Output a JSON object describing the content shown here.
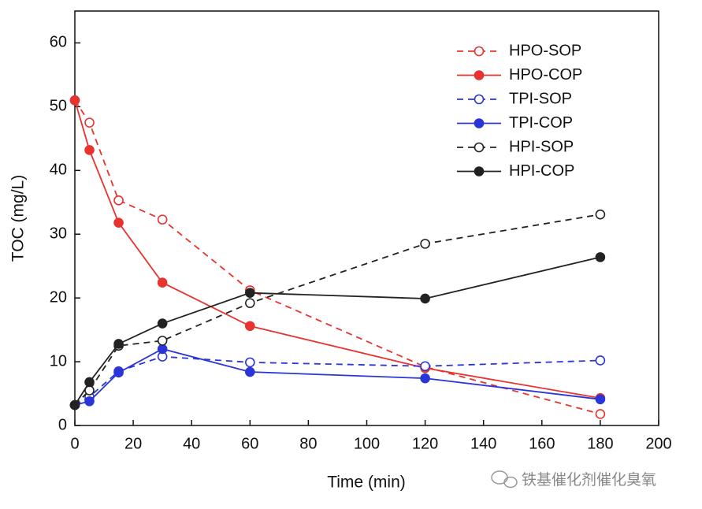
{
  "chart_data": {
    "type": "line",
    "xlabel": "Time (min)",
    "ylabel": "TOC (mg/L)",
    "x": [
      0,
      5,
      15,
      30,
      60,
      120,
      180
    ],
    "xlim": [
      0,
      200
    ],
    "xticks": [
      0,
      20,
      40,
      60,
      80,
      100,
      120,
      140,
      160,
      180,
      200
    ],
    "ylim": [
      0,
      65
    ],
    "yticks": [
      0,
      10,
      20,
      30,
      40,
      50,
      60
    ],
    "legend": "upper right",
    "series": [
      {
        "name": "HPO-SOP",
        "color": "#e8332f",
        "dashed": true,
        "marker_filled": false,
        "values": [
          51,
          47.5,
          35.3,
          32.3,
          21.2,
          9.2,
          1.8
        ]
      },
      {
        "name": "HPO-COP",
        "color": "#e8332f",
        "dashed": false,
        "marker_filled": true,
        "values": [
          51,
          43.2,
          31.8,
          22.4,
          15.6,
          9.0,
          4.3
        ]
      },
      {
        "name": "TPI-SOP",
        "color": "#2a35d8",
        "dashed": true,
        "marker_filled": false,
        "values": [
          3.2,
          4.5,
          8.5,
          10.8,
          9.9,
          9.3,
          10.2
        ]
      },
      {
        "name": "TPI-COP",
        "color": "#2a35d8",
        "dashed": false,
        "marker_filled": true,
        "values": [
          3.2,
          3.8,
          8.3,
          12.0,
          8.4,
          7.4,
          4.1
        ]
      },
      {
        "name": "HPI-SOP",
        "color": "#222222",
        "dashed": true,
        "marker_filled": false,
        "values": [
          3.2,
          5.5,
          12.5,
          13.3,
          19.2,
          28.5,
          33.1
        ]
      },
      {
        "name": "HPI-COP",
        "color": "#222222",
        "dashed": false,
        "marker_filled": true,
        "values": [
          3.2,
          6.8,
          12.8,
          16.0,
          20.8,
          19.9,
          26.4
        ]
      }
    ]
  },
  "watermark": "铁基催化剂催化臭氧"
}
